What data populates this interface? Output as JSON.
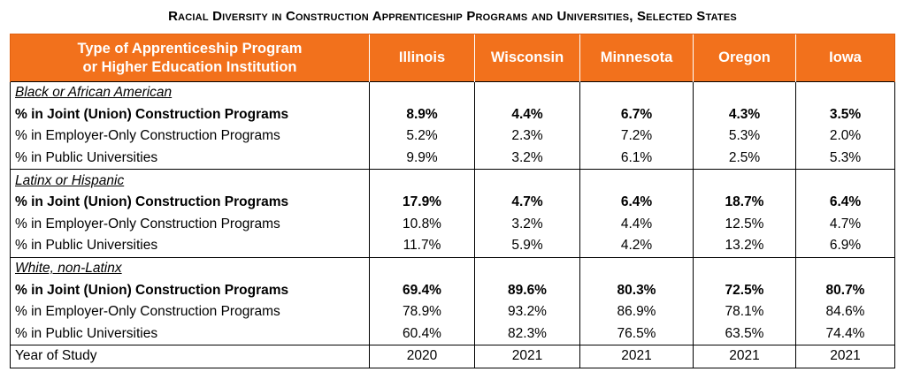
{
  "title": "Racial Diversity in Construction Apprenticeship Programs and Universities, Selected States",
  "header": {
    "type_line1": "Type of Apprenticeship Program",
    "type_line2": "or Higher Education Institution",
    "states": [
      "Illinois",
      "Wisconsin",
      "Minnesota",
      "Oregon",
      "Iowa"
    ]
  },
  "groups": [
    {
      "name": "Black or African American",
      "rows": [
        {
          "label": "% in Joint (Union) Construction Programs",
          "values": [
            "8.9%",
            "4.4%",
            "6.7%",
            "4.3%",
            "3.5%"
          ]
        },
        {
          "label": "% in Employer-Only Construction Programs",
          "values": [
            "5.2%",
            "2.3%",
            "7.2%",
            "5.3%",
            "2.0%"
          ]
        },
        {
          "label": "% in Public Universities",
          "values": [
            "9.9%",
            "3.2%",
            "6.1%",
            "2.5%",
            "5.3%"
          ]
        }
      ]
    },
    {
      "name": "Latinx or Hispanic",
      "rows": [
        {
          "label": "% in Joint (Union) Construction Programs",
          "values": [
            "17.9%",
            "4.7%",
            "6.4%",
            "18.7%",
            "6.4%"
          ]
        },
        {
          "label": "% in Employer-Only Construction Programs",
          "values": [
            "10.8%",
            "3.2%",
            "4.4%",
            "12.5%",
            "4.7%"
          ]
        },
        {
          "label": "% in Public Universities",
          "values": [
            "11.7%",
            "5.9%",
            "4.2%",
            "13.2%",
            "6.9%"
          ]
        }
      ]
    },
    {
      "name": "White, non-Latinx",
      "rows": [
        {
          "label": "% in Joint (Union) Construction Programs",
          "values": [
            "69.4%",
            "89.6%",
            "80.3%",
            "72.5%",
            "80.7%"
          ]
        },
        {
          "label": "% in Employer-Only Construction Programs",
          "values": [
            "78.9%",
            "93.2%",
            "86.9%",
            "78.1%",
            "84.6%"
          ]
        },
        {
          "label": "% in Public Universities",
          "values": [
            "60.4%",
            "82.3%",
            "76.5%",
            "63.5%",
            "74.4%"
          ]
        }
      ]
    }
  ],
  "year_row": {
    "label": "Year of Study",
    "values": [
      "2020",
      "2021",
      "2021",
      "2021",
      "2021"
    ]
  },
  "colors": {
    "header_bg": "#f2711c",
    "header_text": "#ffffff"
  }
}
